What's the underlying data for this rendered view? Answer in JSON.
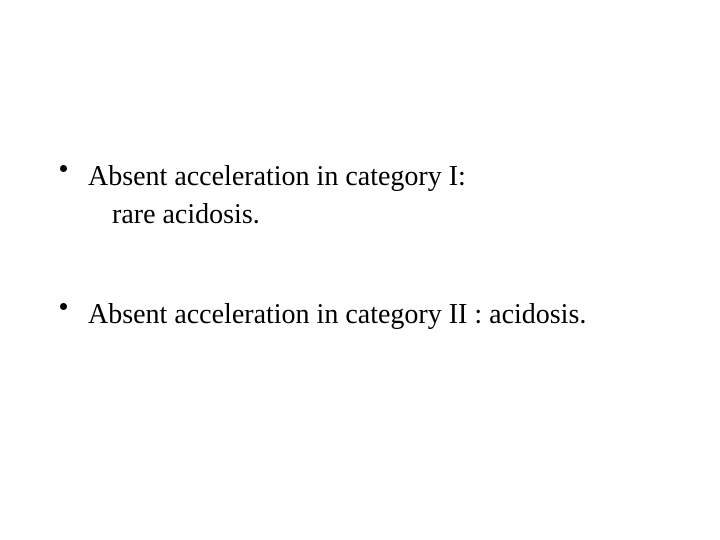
{
  "slide": {
    "background_color": "#ffffff",
    "text_color": "#000000",
    "font_family": "Times New Roman",
    "font_size_pt": 21,
    "bullets": [
      {
        "line1": "Absent acceleration in category I:",
        "line2_indent": "rare acidosis."
      },
      {
        "line1": "Absent acceleration in category II : acidosis."
      }
    ]
  }
}
